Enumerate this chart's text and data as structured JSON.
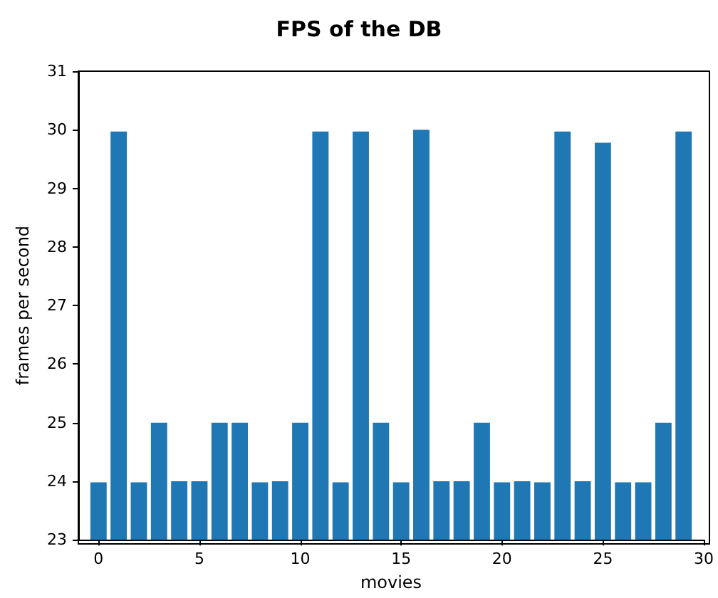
{
  "chart_data": {
    "type": "bar",
    "title": "FPS of the DB",
    "xlabel": "movies",
    "ylabel": "frames per second",
    "x": [
      0,
      1,
      2,
      3,
      4,
      5,
      6,
      7,
      8,
      9,
      10,
      11,
      12,
      13,
      14,
      15,
      16,
      17,
      18,
      19,
      20,
      21,
      22,
      23,
      24,
      25,
      26,
      27,
      28,
      29
    ],
    "values": [
      23.98,
      29.97,
      23.98,
      25,
      24,
      24,
      25,
      25,
      23.98,
      24,
      25,
      29.97,
      23.98,
      29.97,
      25,
      23.98,
      30,
      24,
      24,
      25,
      23.98,
      24,
      23.98,
      29.97,
      24,
      29.78,
      23.98,
      23.98,
      25,
      29.97
    ],
    "color": "#1f77b4",
    "xlim": [
      -1,
      30
    ],
    "xticks": [
      0,
      5,
      10,
      15,
      20,
      25,
      30
    ],
    "ylim": [
      23,
      31
    ],
    "yticks": [
      23,
      24,
      25,
      26,
      27,
      28,
      29,
      30,
      31
    ],
    "grid": false
  }
}
